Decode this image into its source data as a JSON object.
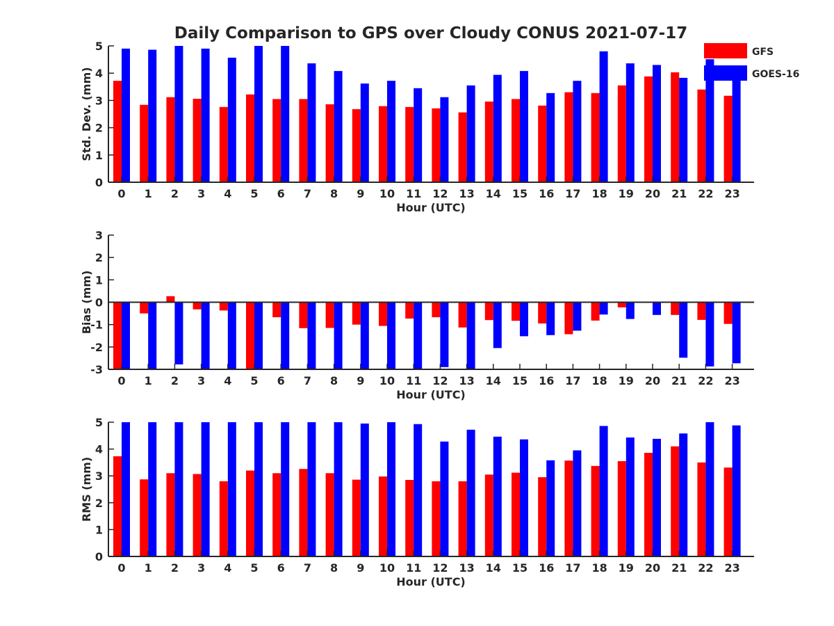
{
  "title": "Daily Comparison to GPS over Cloudy CONUS 2021-07-17",
  "colors": {
    "GFS": "#ff0000",
    "GOES-16": "#0000ff",
    "axis": "#262626"
  },
  "legend": {
    "location": "top-right",
    "entries": [
      {
        "name": "GFS",
        "color": "#ff0000"
      },
      {
        "name": "GOES-16",
        "color": "#0000ff"
      }
    ]
  },
  "chart_data": [
    {
      "type": "bar",
      "ylabel": "Std. Dev. (mm)",
      "xlabel": "Hour (UTC)",
      "ylim": [
        0,
        5
      ],
      "yticks": [
        0,
        1,
        2,
        3,
        4,
        5
      ],
      "categories": [
        "0",
        "1",
        "2",
        "3",
        "4",
        "5",
        "6",
        "7",
        "8",
        "9",
        "10",
        "11",
        "12",
        "13",
        "14",
        "15",
        "16",
        "17",
        "18",
        "19",
        "20",
        "21",
        "22",
        "23"
      ],
      "series": [
        {
          "name": "GFS",
          "values": [
            3.72,
            2.84,
            3.12,
            3.06,
            2.76,
            3.22,
            3.05,
            3.05,
            2.86,
            2.68,
            2.79,
            2.76,
            2.71,
            2.56,
            2.96,
            3.05,
            2.81,
            3.3,
            3.27,
            3.55,
            3.88,
            4.03,
            3.4,
            3.17
          ]
        },
        {
          "name": "GOES-16",
          "values": [
            4.9,
            4.86,
            5.1,
            4.9,
            4.57,
            5.1,
            5.1,
            4.36,
            4.08,
            3.62,
            3.72,
            3.45,
            3.12,
            3.55,
            3.94,
            4.08,
            3.27,
            3.72,
            4.8,
            4.36,
            4.3,
            3.83,
            4.51,
            3.8
          ]
        }
      ]
    },
    {
      "type": "bar",
      "ylabel": "Bias (mm)",
      "xlabel": "Hour (UTC)",
      "ylim": [
        -3,
        3
      ],
      "yticks": [
        -3,
        -2,
        -1,
        0,
        1,
        2,
        3
      ],
      "categories": [
        "0",
        "1",
        "2",
        "3",
        "4",
        "5",
        "6",
        "7",
        "8",
        "9",
        "10",
        "11",
        "12",
        "13",
        "14",
        "15",
        "16",
        "17",
        "18",
        "19",
        "20",
        "21",
        "22",
        "23"
      ],
      "series": [
        {
          "name": "GFS",
          "values": [
            -3.1,
            -0.5,
            0.27,
            -0.32,
            -0.37,
            -3.1,
            -0.67,
            -1.16,
            -1.15,
            -1.0,
            -1.06,
            -0.73,
            -0.67,
            -1.13,
            -0.8,
            -0.83,
            -0.95,
            -1.43,
            -0.82,
            -0.23,
            0.0,
            -0.57,
            -0.79,
            -0.97
          ]
        },
        {
          "name": "GOES-16",
          "values": [
            -3.1,
            -3.1,
            -2.78,
            -2.97,
            -3.1,
            -3.1,
            -3.1,
            -3.1,
            -3.1,
            -3.1,
            -3.1,
            -3.1,
            -2.9,
            -3.1,
            -2.05,
            -1.52,
            -1.47,
            -1.27,
            -0.55,
            -0.75,
            -0.57,
            -2.48,
            -2.87,
            -2.73
          ]
        }
      ]
    },
    {
      "type": "bar",
      "ylabel": "RMS (mm)",
      "xlabel": "Hour (UTC)",
      "ylim": [
        0,
        5
      ],
      "yticks": [
        0,
        1,
        2,
        3,
        4,
        5
      ],
      "categories": [
        "0",
        "1",
        "2",
        "3",
        "4",
        "5",
        "6",
        "7",
        "8",
        "9",
        "10",
        "11",
        "12",
        "13",
        "14",
        "15",
        "16",
        "17",
        "18",
        "19",
        "20",
        "21",
        "22",
        "23"
      ],
      "series": [
        {
          "name": "GFS",
          "values": [
            3.73,
            2.87,
            3.1,
            3.07,
            2.8,
            3.2,
            3.1,
            3.26,
            3.1,
            2.86,
            2.98,
            2.85,
            2.8,
            2.8,
            3.05,
            3.12,
            2.95,
            3.57,
            3.37,
            3.55,
            3.86,
            4.1,
            3.5,
            3.31
          ]
        },
        {
          "name": "GOES-16",
          "values": [
            5.1,
            5.1,
            5.1,
            5.1,
            5.1,
            5.1,
            5.1,
            5.1,
            5.1,
            4.95,
            5.1,
            4.93,
            4.28,
            4.72,
            4.46,
            4.36,
            3.58,
            3.95,
            4.86,
            4.43,
            4.38,
            4.58,
            5.1,
            4.88
          ]
        }
      ]
    }
  ]
}
